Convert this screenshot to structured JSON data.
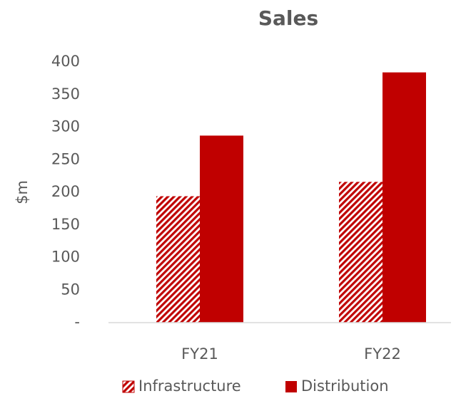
{
  "chart_data": {
    "type": "bar",
    "title": "Sales",
    "y_label": "$m",
    "categories": [
      "FY21",
      "FY22"
    ],
    "series": [
      {
        "name": "Infrastructure",
        "color": "#c00000",
        "pattern": "diagonal",
        "values": [
          194,
          216
        ]
      },
      {
        "name": "Distribution",
        "color": "#c00000",
        "pattern": "solid",
        "values": [
          287,
          384
        ]
      }
    ],
    "ylim": [
      0,
      400
    ],
    "yticks": [
      {
        "value": 0,
        "label": "-"
      },
      50,
      100,
      150,
      200,
      250,
      300,
      350,
      400
    ],
    "grid": false,
    "legend": "bottom"
  }
}
